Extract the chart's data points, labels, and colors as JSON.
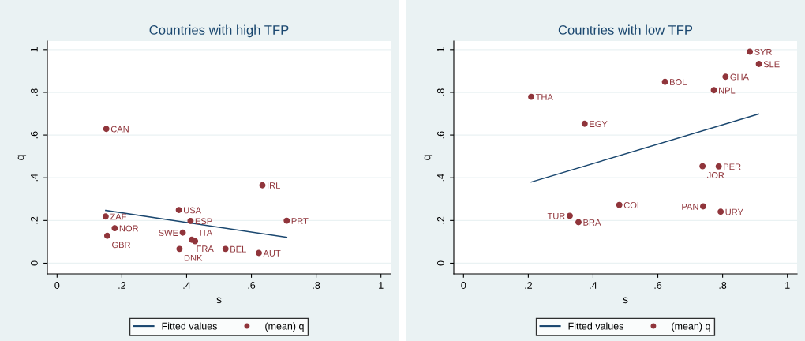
{
  "chart_data": [
    {
      "type": "scatter",
      "title": "Countries with high TFP",
      "xlabel": "s",
      "ylabel": "q",
      "xlim": [
        -0.03,
        1.03
      ],
      "ylim": [
        -0.05,
        1.04
      ],
      "xticks": [
        0,
        {
          "value": 0.2,
          "label": ".2"
        },
        {
          "value": 0.4,
          "label": ".4"
        },
        {
          "value": 0.6,
          "label": ".6"
        },
        {
          "value": 0.8,
          "label": ".8"
        },
        1
      ],
      "yticks": [
        0,
        {
          "value": 0.2,
          "label": ".2"
        },
        {
          "value": 0.4,
          "label": ".4"
        },
        {
          "value": 0.6,
          "label": ".6"
        },
        {
          "value": 0.8,
          "label": ".8"
        },
        1
      ],
      "grid": "y",
      "legend": "bottom",
      "series": [
        {
          "name": "Fitted values",
          "type": "line",
          "color": "#1a476f",
          "marker": "none",
          "x": [
            0.15,
            0.709
          ],
          "values": [
            0.247,
            0.121
          ]
        },
        {
          "name": "(mean) q",
          "type": "scatter",
          "color": "#90353b",
          "marker": "circle",
          "x": [
            0.152,
            0.634,
            0.376,
            0.15,
            0.412,
            0.709,
            0.178,
            0.155,
            0.388,
            0.416,
            0.426,
            0.378,
            0.52,
            0.623
          ],
          "values": [
            0.629,
            0.365,
            0.249,
            0.219,
            0.198,
            0.199,
            0.164,
            0.128,
            0.143,
            0.11,
            0.103,
            0.067,
            0.067,
            0.048
          ]
        }
      ],
      "annotations": [
        {
          "text": "CAN",
          "x": 0.152,
          "y": 0.629
        },
        {
          "text": "IRL",
          "x": 0.634,
          "y": 0.365
        },
        {
          "text": "USA",
          "x": 0.376,
          "y": 0.249
        },
        {
          "text": "ZAF",
          "x": 0.15,
          "y": 0.219
        },
        {
          "text": "ESP",
          "x": 0.412,
          "y": 0.198
        },
        {
          "text": "PRT",
          "x": 0.709,
          "y": 0.199
        },
        {
          "text": "NOR",
          "x": 0.178,
          "y": 0.164
        },
        {
          "text": "GBR",
          "x": 0.155,
          "y": 0.128
        },
        {
          "text": "SWE",
          "x": 0.388,
          "y": 0.143
        },
        {
          "text": "FRA",
          "x": 0.416,
          "y": 0.11
        },
        {
          "text": "ITA",
          "x": 0.426,
          "y": 0.103
        },
        {
          "text": "DNK",
          "x": 0.378,
          "y": 0.067
        },
        {
          "text": "BEL",
          "x": 0.52,
          "y": 0.067
        },
        {
          "text": "AUT",
          "x": 0.623,
          "y": 0.048
        }
      ]
    },
    {
      "type": "scatter",
      "title": "Countries with low TFP",
      "xlabel": "s",
      "ylabel": "q",
      "xlim": [
        -0.03,
        1.03
      ],
      "ylim": [
        -0.05,
        1.04
      ],
      "xticks": [
        0,
        {
          "value": 0.2,
          "label": ".2"
        },
        {
          "value": 0.4,
          "label": ".4"
        },
        {
          "value": 0.6,
          "label": ".6"
        },
        {
          "value": 0.8,
          "label": ".8"
        },
        1
      ],
      "yticks": [
        0,
        {
          "value": 0.2,
          "label": ".2"
        },
        {
          "value": 0.4,
          "label": ".4"
        },
        {
          "value": 0.6,
          "label": ".6"
        },
        {
          "value": 0.8,
          "label": ".8"
        },
        1
      ],
      "grid": "y",
      "legend": "bottom",
      "series": [
        {
          "name": "Fitted values",
          "type": "line",
          "color": "#1a476f",
          "marker": "none",
          "x": [
            0.209,
            0.911
          ],
          "values": [
            0.38,
            0.698
          ]
        },
        {
          "name": "(mean) q",
          "type": "scatter",
          "color": "#90353b",
          "marker": "circle",
          "x": [
            0.884,
            0.912,
            0.809,
            0.622,
            0.773,
            0.209,
            0.374,
            0.738,
            0.788,
            0.481,
            0.74,
            0.794,
            0.328,
            0.355
          ],
          "values": [
            0.99,
            0.933,
            0.873,
            0.849,
            0.81,
            0.779,
            0.653,
            0.454,
            0.453,
            0.273,
            0.266,
            0.241,
            0.222,
            0.192
          ]
        }
      ],
      "annotations": [
        {
          "text": "SYR",
          "x": 0.884,
          "y": 0.99
        },
        {
          "text": "SLE",
          "x": 0.912,
          "y": 0.933
        },
        {
          "text": "GHA",
          "x": 0.809,
          "y": 0.873
        },
        {
          "text": "BOL",
          "x": 0.622,
          "y": 0.849
        },
        {
          "text": "NPL",
          "x": 0.773,
          "y": 0.81
        },
        {
          "text": "THA",
          "x": 0.209,
          "y": 0.779
        },
        {
          "text": "EGY",
          "x": 0.374,
          "y": 0.653
        },
        {
          "text": "JOR",
          "x": 0.738,
          "y": 0.454
        },
        {
          "text": "PER",
          "x": 0.788,
          "y": 0.453
        },
        {
          "text": "COL",
          "x": 0.481,
          "y": 0.273
        },
        {
          "text": "PAN",
          "x": 0.74,
          "y": 0.266
        },
        {
          "text": "URY",
          "x": 0.794,
          "y": 0.241
        },
        {
          "text": "TUR",
          "x": 0.328,
          "y": 0.222
        },
        {
          "text": "BRA",
          "x": 0.355,
          "y": 0.192
        }
      ]
    }
  ]
}
